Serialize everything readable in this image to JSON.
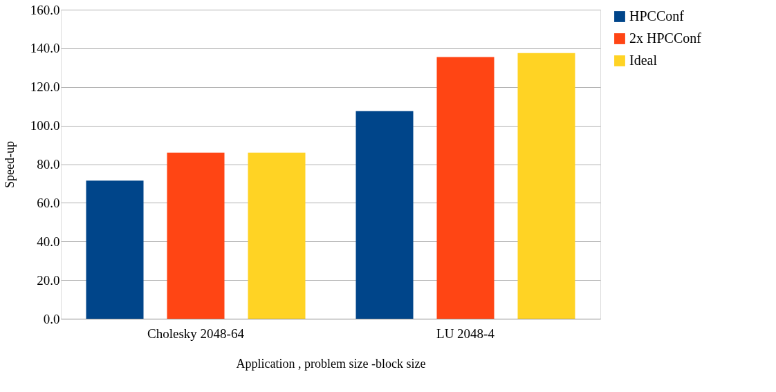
{
  "chart_data": {
    "type": "bar",
    "xlabel": "Application , problem size -block size",
    "ylabel": "Speed-up",
    "categories": [
      "Cholesky 2048-64",
      "LU 2048-4"
    ],
    "series": [
      {
        "name": "HPCConf",
        "color": "#00458a",
        "values": [
          71.5,
          107.5
        ]
      },
      {
        "name": "2x HPCConf",
        "color": "#ff4514",
        "values": [
          86.0,
          135.5
        ]
      },
      {
        "name": "Ideal",
        "color": "#ffd324",
        "values": [
          86.0,
          137.5
        ]
      }
    ],
    "ylim": [
      0,
      160
    ],
    "yticks": [
      {
        "value": 0,
        "label": "0.0"
      },
      {
        "value": 20,
        "label": "20.0"
      },
      {
        "value": 40,
        "label": "40.0"
      },
      {
        "value": 60,
        "label": "60.0"
      },
      {
        "value": 80,
        "label": "80.0"
      },
      {
        "value": 100,
        "label": "100.0"
      },
      {
        "value": 120,
        "label": "120.0"
      },
      {
        "value": 140,
        "label": "140.0"
      },
      {
        "value": 160,
        "label": "160.0"
      }
    ],
    "grid": "y",
    "legend": "right"
  }
}
